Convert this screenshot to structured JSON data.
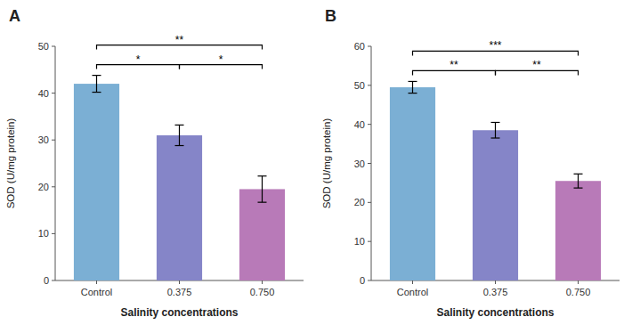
{
  "chart_data": [
    {
      "type": "bar",
      "title": "A",
      "categories": [
        "Control",
        "0.375",
        "0.750"
      ],
      "values": [
        42.0,
        31.0,
        19.5
      ],
      "errors": [
        1.8,
        2.2,
        2.8
      ],
      "colors": [
        "#7bafd4",
        "#8585c8",
        "#b87ab8"
      ],
      "ylim": [
        0,
        50
      ],
      "yticks": [
        0,
        10,
        20,
        30,
        40,
        50
      ],
      "ylabel": "SOD (U/mg protein)",
      "xlabel": "Salinity concentrations",
      "grid": false,
      "annotations": [
        {
          "text": "*",
          "from": "Control",
          "to": "0.375"
        },
        {
          "text": "*",
          "from": "0.375",
          "to": "0.750"
        },
        {
          "text": "**",
          "from": "Control",
          "to": "0.750"
        }
      ]
    },
    {
      "type": "bar",
      "title": "B",
      "categories": [
        "Control",
        "0.375",
        "0.750"
      ],
      "values": [
        49.5,
        38.5,
        25.5
      ],
      "errors": [
        1.5,
        2.0,
        1.8
      ],
      "colors": [
        "#7bafd4",
        "#8585c8",
        "#b87ab8"
      ],
      "ylim": [
        0,
        60
      ],
      "yticks": [
        0,
        10,
        20,
        30,
        40,
        50,
        60
      ],
      "ylabel": "SOD (U/mg protein)",
      "xlabel": "Salinity concentrations",
      "grid": false,
      "annotations": [
        {
          "text": "**",
          "from": "Control",
          "to": "0.375"
        },
        {
          "text": "**",
          "from": "0.375",
          "to": "0.750"
        },
        {
          "text": "***",
          "from": "Control",
          "to": "0.750"
        }
      ]
    }
  ]
}
